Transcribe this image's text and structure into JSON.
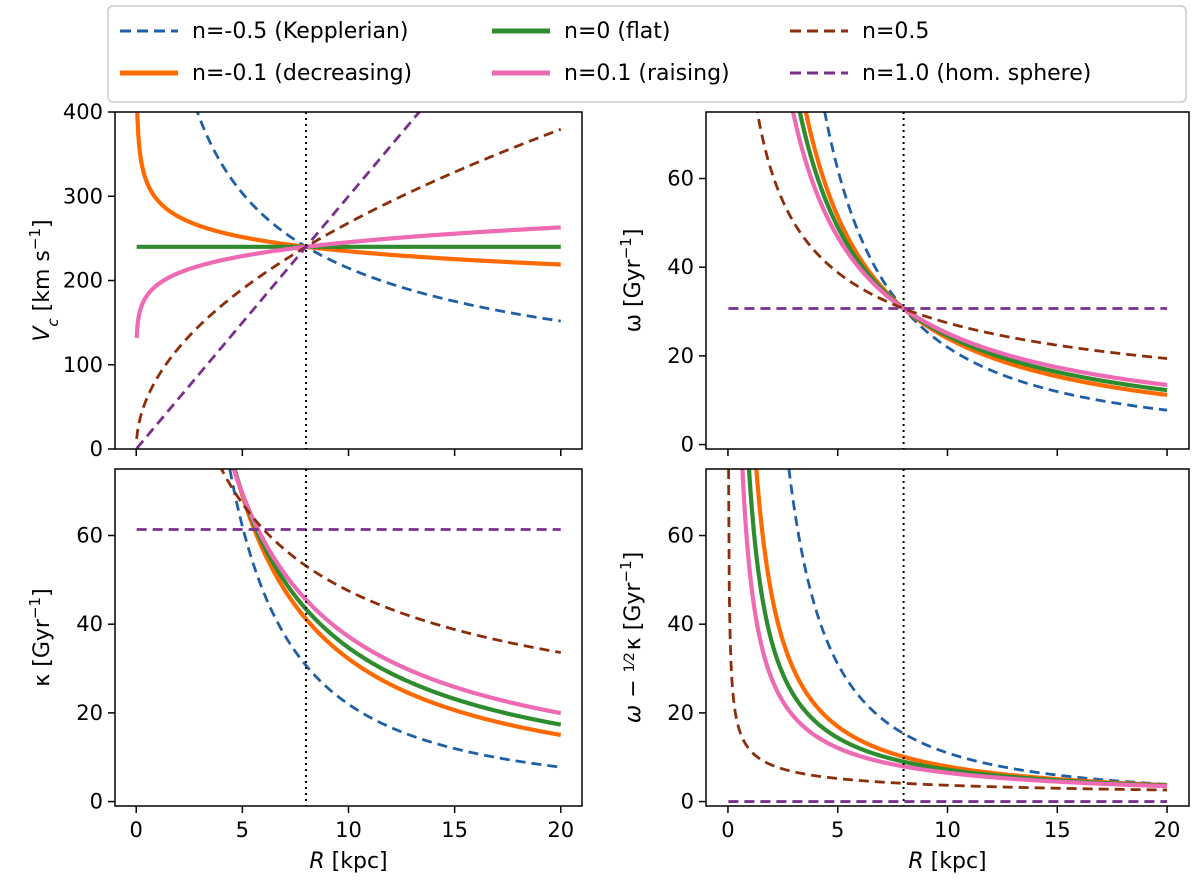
{
  "figure": {
    "legend": {
      "entries": [
        {
          "label": "n=-0.5 (Kepplerian)",
          "color": "#1f5fa8",
          "style": "dashed"
        },
        {
          "label": "n=0 (flat)",
          "color": "#2e8b2e",
          "style": "solid"
        },
        {
          "label": "n=0.5",
          "color": "#8b2e0a",
          "style": "dashed"
        },
        {
          "label": "n=-0.1 (decreasing)",
          "color": "#ff6a00",
          "style": "solid"
        },
        {
          "label": "n=0.1 (raising)",
          "color": "#ee6bb4",
          "style": "solid"
        },
        {
          "label": "n=1.0 (hom. sphere)",
          "color": "#7b2f8f",
          "style": "dashed"
        }
      ]
    },
    "reference_line": {
      "x": 8,
      "style": "dotted",
      "color": "#000000"
    }
  },
  "chart_data": [
    {
      "type": "line",
      "panel": "top-left",
      "ylabel_base": "V",
      "ylabel_sub": "c",
      "ylabel_unit": " [km s",
      "ylabel_sup": "−1",
      "ylabel_close": "]",
      "xlim": [
        -1,
        21
      ],
      "ylim": [
        0,
        400
      ],
      "xticks": [
        0,
        5,
        10,
        15,
        20
      ],
      "yticks": [
        0,
        100,
        200,
        300,
        400
      ],
      "show_xticklabels": false,
      "function": "vc",
      "series": [
        {
          "n": -0.5,
          "color": "#1f5fa8",
          "dashed": true,
          "values": "V_c = 240 (R/8)^n"
        },
        {
          "n": -0.1,
          "color": "#ff6a00",
          "dashed": false
        },
        {
          "n": 0.0,
          "color": "#2e8b2e",
          "dashed": false
        },
        {
          "n": 0.1,
          "color": "#ee6bb4",
          "dashed": false
        },
        {
          "n": 0.5,
          "color": "#8b2e0a",
          "dashed": true
        },
        {
          "n": 1.0,
          "color": "#7b2f8f",
          "dashed": true
        }
      ]
    },
    {
      "type": "line",
      "panel": "top-right",
      "ylabel_base": "ω [Gyr",
      "ylabel_sup": "−1",
      "ylabel_close": "]",
      "xlim": [
        -1,
        21
      ],
      "ylim": [
        -1,
        75
      ],
      "xticks": [
        0,
        5,
        10,
        15,
        20
      ],
      "yticks": [
        0,
        20,
        40,
        60
      ],
      "show_xticklabels": false,
      "function": "omega",
      "series": [
        {
          "n": -0.5,
          "color": "#1f5fa8",
          "dashed": true
        },
        {
          "n": -0.1,
          "color": "#ff6a00",
          "dashed": false
        },
        {
          "n": 0.0,
          "color": "#2e8b2e",
          "dashed": false
        },
        {
          "n": 0.1,
          "color": "#ee6bb4",
          "dashed": false
        },
        {
          "n": 0.5,
          "color": "#8b2e0a",
          "dashed": true
        },
        {
          "n": 1.0,
          "color": "#7b2f8f",
          "dashed": true
        }
      ]
    },
    {
      "type": "line",
      "panel": "bottom-left",
      "ylabel_base": "κ [Gyr",
      "ylabel_sup": "−1",
      "ylabel_close": "]",
      "xlabel": "R [kpc]",
      "xlim": [
        -1,
        21
      ],
      "ylim": [
        -1,
        75
      ],
      "xticks": [
        0,
        5,
        10,
        15,
        20
      ],
      "yticks": [
        0,
        20,
        40,
        60
      ],
      "show_xticklabels": true,
      "function": "kappa",
      "series": [
        {
          "n": -0.5,
          "color": "#1f5fa8",
          "dashed": true
        },
        {
          "n": -0.1,
          "color": "#ff6a00",
          "dashed": false
        },
        {
          "n": 0.0,
          "color": "#2e8b2e",
          "dashed": false
        },
        {
          "n": 0.1,
          "color": "#ee6bb4",
          "dashed": false
        },
        {
          "n": 0.5,
          "color": "#8b2e0a",
          "dashed": true
        },
        {
          "n": 1.0,
          "color": "#7b2f8f",
          "dashed": true
        }
      ]
    },
    {
      "type": "line",
      "panel": "bottom-right",
      "ylabel_base": "ω − ",
      "ylabel_frac_num": "1",
      "ylabel_frac_den": "2",
      "ylabel_after": "κ [Gyr",
      "ylabel_sup": "−1",
      "ylabel_close": "]",
      "xlabel": "R [kpc]",
      "xlim": [
        -1,
        21
      ],
      "ylim": [
        -1,
        75
      ],
      "xticks": [
        0,
        5,
        10,
        15,
        20
      ],
      "yticks": [
        0,
        20,
        40,
        60
      ],
      "show_xticklabels": true,
      "function": "omega_minus_half_kappa",
      "series": [
        {
          "n": -0.5,
          "color": "#1f5fa8",
          "dashed": true
        },
        {
          "n": -0.1,
          "color": "#ff6a00",
          "dashed": false
        },
        {
          "n": 0.0,
          "color": "#2e8b2e",
          "dashed": false
        },
        {
          "n": 0.1,
          "color": "#ee6bb4",
          "dashed": false
        },
        {
          "n": 0.5,
          "color": "#8b2e0a",
          "dashed": true
        },
        {
          "n": 1.0,
          "color": "#7b2f8f",
          "dashed": true
        }
      ]
    }
  ]
}
